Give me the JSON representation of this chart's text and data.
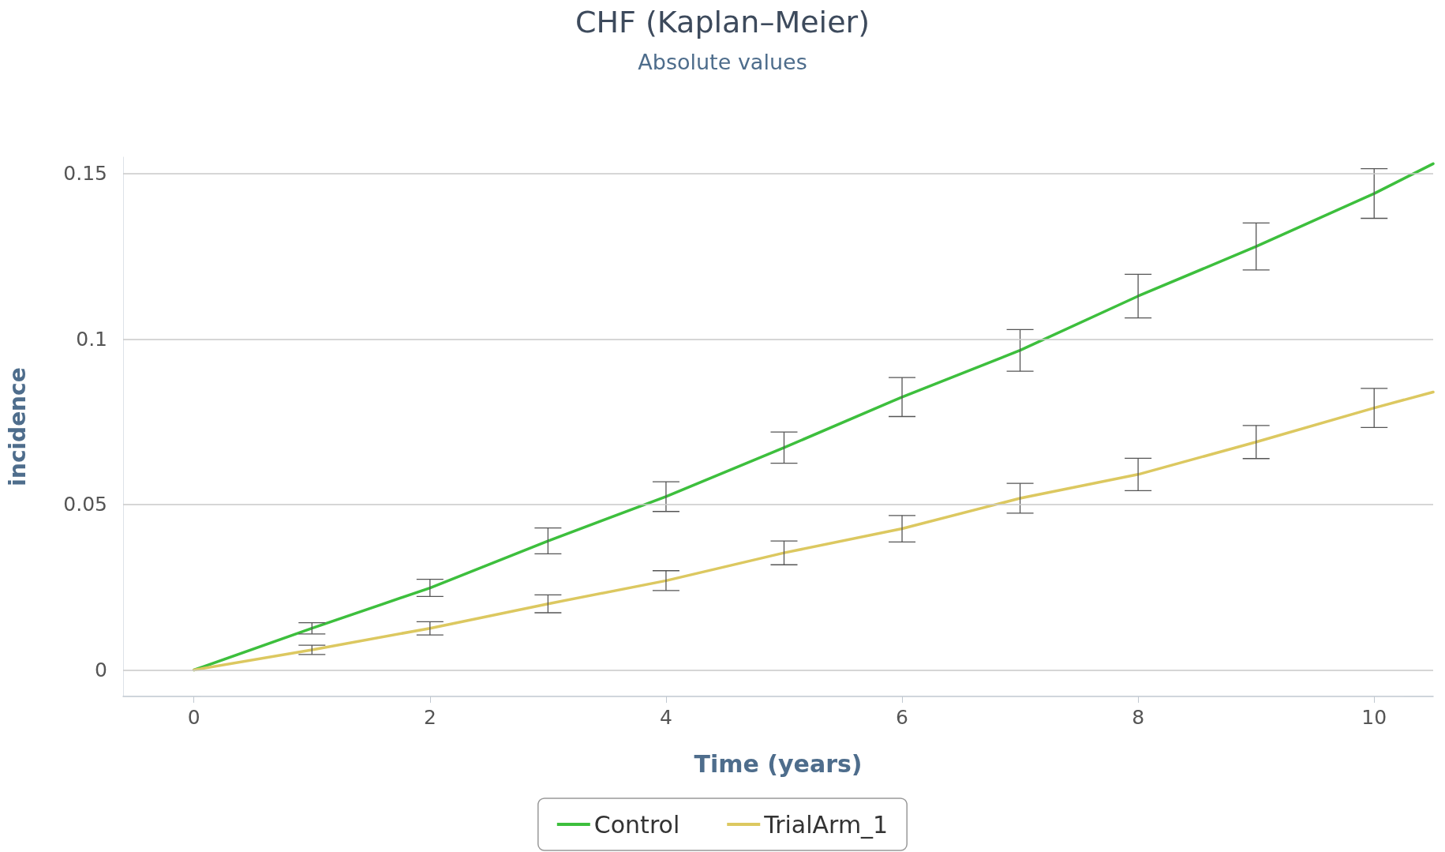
{
  "chart_data": {
    "type": "line",
    "title": "CHF (Kaplan–Meier)",
    "subtitle": "Absolute values",
    "xlabel": "Time (years)",
    "ylabel": "incidence",
    "xlim": [
      -0.6,
      10.5
    ],
    "xticks": [
      0,
      2,
      4,
      6,
      8,
      10
    ],
    "ylim": [
      -0.008,
      0.155
    ],
    "yticks": [
      0,
      0.05,
      0.1,
      0.15
    ],
    "grid": "y",
    "legend": "bottom",
    "marker": "none",
    "line_style": "solid",
    "x": [
      0,
      1,
      2,
      3,
      4,
      5,
      6,
      7,
      8,
      9,
      10,
      10.5
    ],
    "series": [
      {
        "name": "Control",
        "color": "#3dbf3d",
        "values": [
          0,
          0.0126,
          0.0248,
          0.039,
          0.0524,
          0.0672,
          0.0825,
          0.0966,
          0.113,
          0.128,
          0.144,
          0.153
        ],
        "errors": [
          null,
          0.0017,
          0.0026,
          0.0039,
          0.0045,
          0.0047,
          0.0059,
          0.0063,
          0.0066,
          0.0071,
          0.0075,
          null
        ]
      },
      {
        "name": "TrialArm_1",
        "color": "#dcc860",
        "values": [
          0,
          0.0061,
          0.0126,
          0.02,
          0.027,
          0.0354,
          0.0427,
          0.0519,
          0.0591,
          0.0689,
          0.0792,
          0.084
        ],
        "errors": [
          null,
          0.0014,
          0.002,
          0.0027,
          0.003,
          0.0036,
          0.004,
          0.0045,
          0.0049,
          0.005,
          0.0059,
          null
        ]
      }
    ]
  }
}
